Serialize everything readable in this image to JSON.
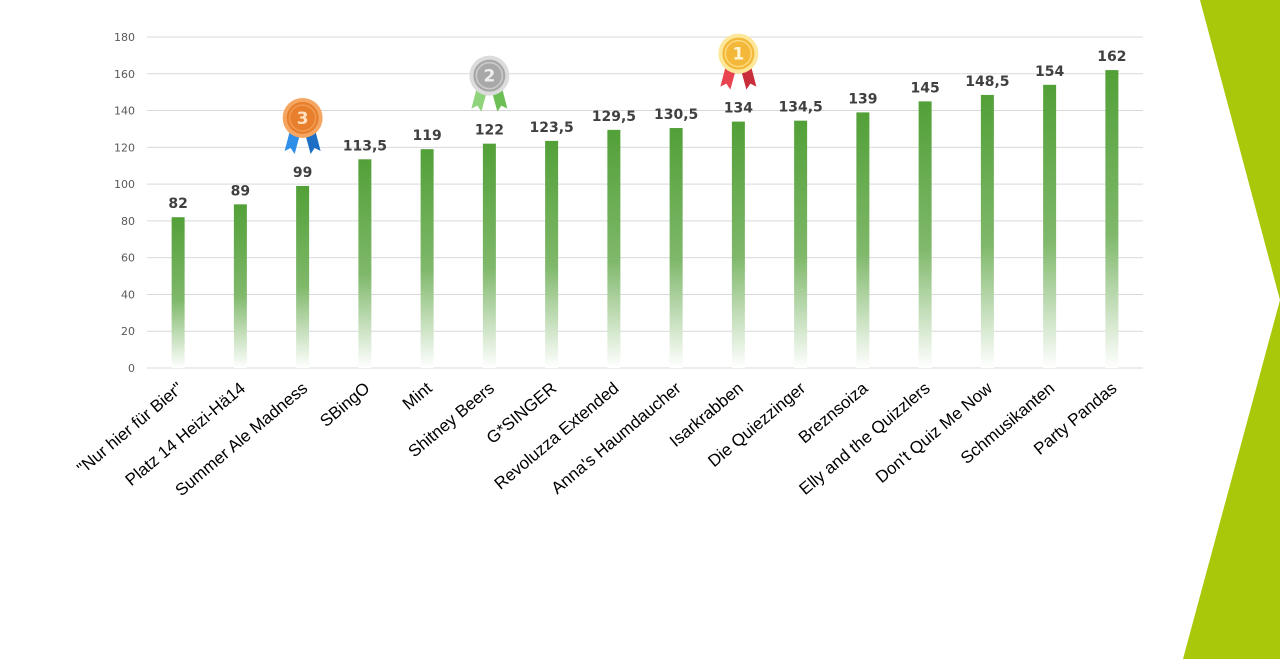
{
  "colors": {
    "bar_top": "#52a038",
    "bar_bottom": "#ffffff",
    "grid": "#d9d9d9",
    "accent": "#a9c80a",
    "gold": "#f3b839",
    "silver": "#a8a8a8",
    "bronze": "#e77f2c"
  },
  "chart_data": {
    "type": "bar",
    "categories": [
      "\"Nur hier für Bier\"",
      "Platz 14 Heizi-Hä14",
      "Summer Ale Madness",
      "SBingO",
      "Mint",
      "Shitney Beers",
      "G*SINGER",
      "Revoluzza Extended",
      "Anna's Haumdaucher",
      "Isarkrabben",
      "Die Quiezzinger",
      "Breznsoiza",
      "Elly and the Quizzlers",
      "Don't Quiz Me Now",
      "Schmusikanten",
      "Party Pandas"
    ],
    "values": [
      82,
      89,
      99,
      113.5,
      119,
      122,
      123.5,
      129.5,
      130.5,
      134,
      134.5,
      139,
      145,
      148.5,
      154,
      162
    ],
    "value_labels": [
      "82",
      "89",
      "99",
      "113,5",
      "119",
      "122",
      "123,5",
      "129,5",
      "130,5",
      "134",
      "134,5",
      "139",
      "145",
      "148,5",
      "154",
      "162"
    ],
    "yticks": [
      "0",
      "20",
      "40",
      "60",
      "80",
      "100",
      "120",
      "140",
      "160",
      "180"
    ],
    "ylim": [
      0,
      180
    ],
    "grid": true,
    "title": "",
    "xlabel": "",
    "ylabel": "",
    "medals": [
      {
        "rank": "3",
        "category_index": 2,
        "icon": "bronze-medal-icon"
      },
      {
        "rank": "2",
        "category_index": 5,
        "icon": "silver-medal-icon"
      },
      {
        "rank": "1",
        "category_index": 9,
        "icon": "gold-medal-icon"
      }
    ]
  }
}
